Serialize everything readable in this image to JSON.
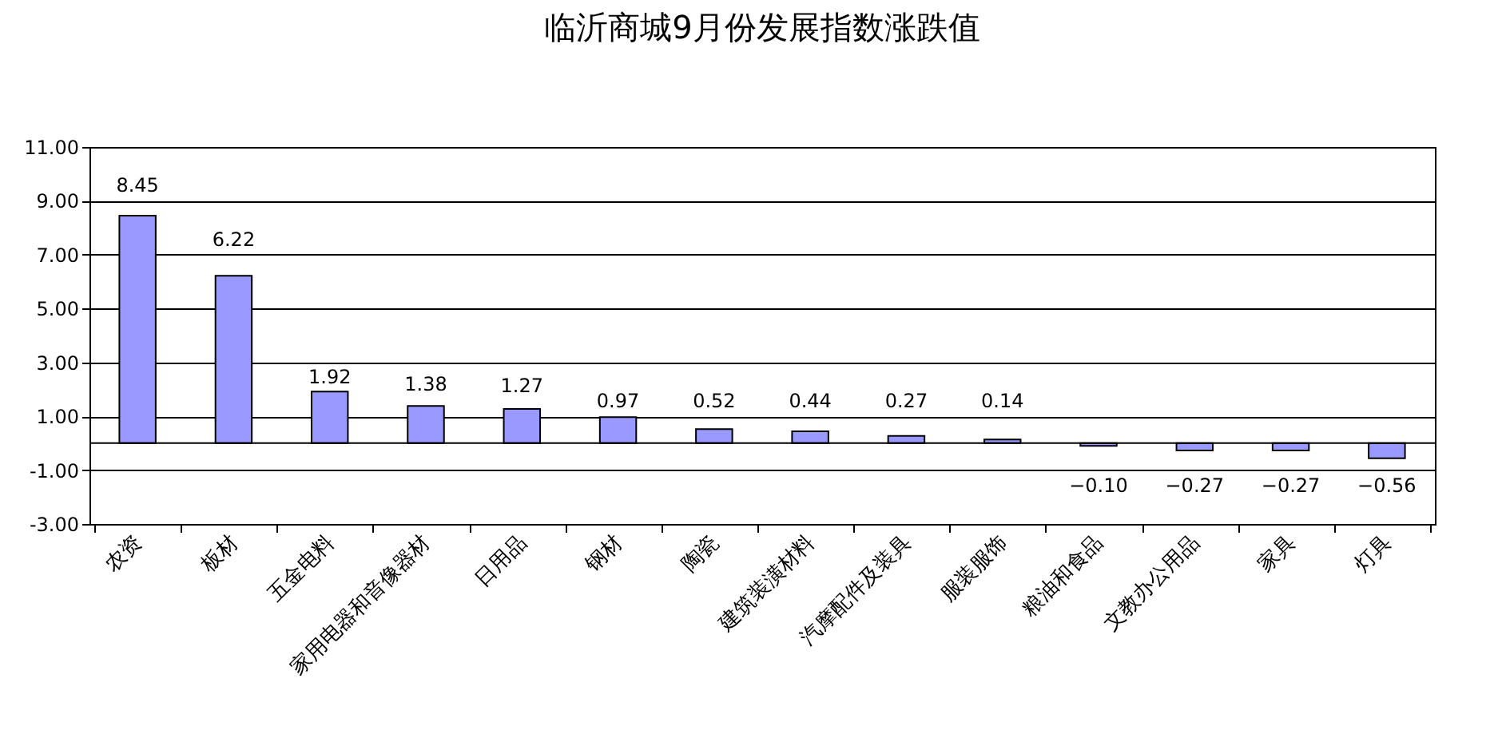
{
  "chart_data": {
    "type": "bar",
    "title": "临沂商城9月份发展指数涨跌值",
    "categories": [
      "农资",
      "板材",
      "五金电料",
      "家用电器和音像器材",
      "日用品",
      "钢材",
      "陶瓷",
      "建筑装潢材料",
      "汽摩配件及装具",
      "服装服饰",
      "粮油和食品",
      "文教办公用品",
      "家具",
      "灯具"
    ],
    "values": [
      8.45,
      6.22,
      1.92,
      1.38,
      1.27,
      0.97,
      0.52,
      0.44,
      0.27,
      0.14,
      -0.1,
      -0.27,
      -0.27,
      -0.56
    ],
    "value_labels": [
      "8.45",
      "6.22",
      "1.92",
      "1.38",
      "1.27",
      "0.97",
      "0.52",
      "0.44",
      "0.27",
      "0.14",
      "−0.10",
      "−0.27",
      "−0.27",
      "−0.56"
    ],
    "color": "#9999ff",
    "ylim": [
      -3,
      11
    ],
    "yticks": [
      {
        "value": -3,
        "label": "-3.00"
      },
      {
        "value": -1,
        "label": "-1.00"
      },
      {
        "value": 1,
        "label": "1.00"
      },
      {
        "value": 3,
        "label": "3.00"
      },
      {
        "value": 5,
        "label": "5.00"
      },
      {
        "value": 7,
        "label": "7.00"
      },
      {
        "value": 9,
        "label": "9.00"
      },
      {
        "value": 11,
        "label": "11.00"
      }
    ],
    "grid": "y"
  }
}
